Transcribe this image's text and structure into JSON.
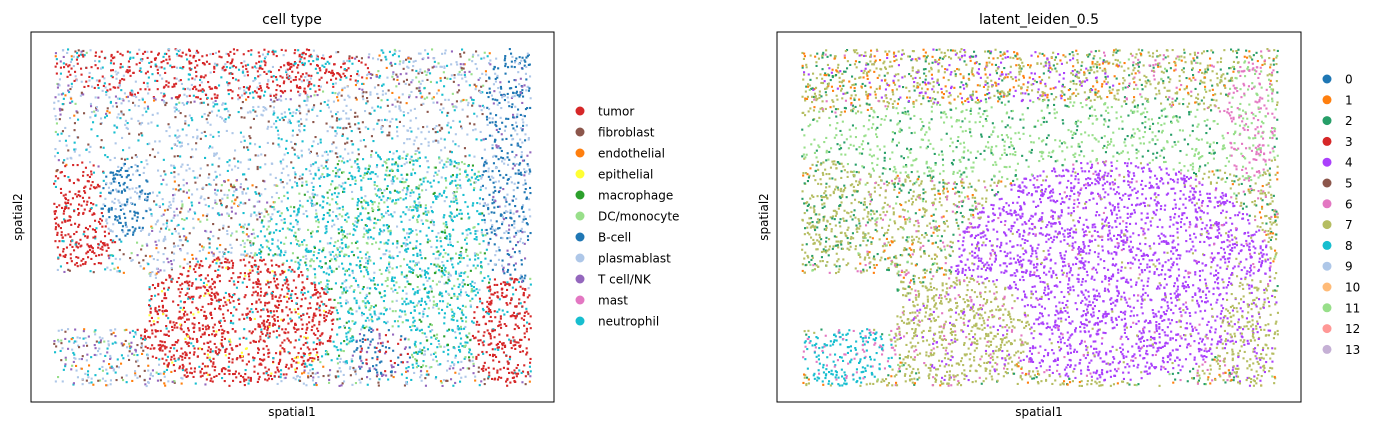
{
  "chart_data": [
    {
      "type": "scatter",
      "title": "cell type",
      "xlabel": "spatial1",
      "ylabel": "spatial2",
      "grid": false,
      "ticks": false,
      "legend_position": "right",
      "categories": [
        {
          "name": "tumor",
          "color": "#d62728"
        },
        {
          "name": "fibroblast",
          "color": "#8c564b"
        },
        {
          "name": "endothelial",
          "color": "#ff7f0e"
        },
        {
          "name": "epithelial",
          "color": "#ffff33"
        },
        {
          "name": "macrophage",
          "color": "#2ca02c"
        },
        {
          "name": "DC/monocyte",
          "color": "#98df8a"
        },
        {
          "name": "B-cell",
          "color": "#1f77b4"
        },
        {
          "name": "plasmablast",
          "color": "#aec7e8"
        },
        {
          "name": "T cell/NK",
          "color": "#9467bd"
        },
        {
          "name": "mast",
          "color": "#e377c2"
        },
        {
          "name": "neutrophil",
          "color": "#17becf"
        }
      ]
    },
    {
      "type": "scatter",
      "title": "latent_leiden_0.5",
      "xlabel": "spatial1",
      "ylabel": "spatial2",
      "grid": false,
      "ticks": false,
      "legend_position": "right",
      "categories": [
        {
          "name": "0",
          "color": "#1f77b4"
        },
        {
          "name": "1",
          "color": "#ff7f0e"
        },
        {
          "name": "2",
          "color": "#279e68"
        },
        {
          "name": "3",
          "color": "#d62728"
        },
        {
          "name": "4",
          "color": "#aa40fc"
        },
        {
          "name": "5",
          "color": "#8c564b"
        },
        {
          "name": "6",
          "color": "#e377c2"
        },
        {
          "name": "7",
          "color": "#b5bd61"
        },
        {
          "name": "8",
          "color": "#17becf"
        },
        {
          "name": "9",
          "color": "#aec7e8"
        },
        {
          "name": "10",
          "color": "#ffbb78"
        },
        {
          "name": "11",
          "color": "#98df8a"
        },
        {
          "name": "12",
          "color": "#ff9896"
        },
        {
          "name": "13",
          "color": "#c5b0d5"
        }
      ]
    }
  ]
}
